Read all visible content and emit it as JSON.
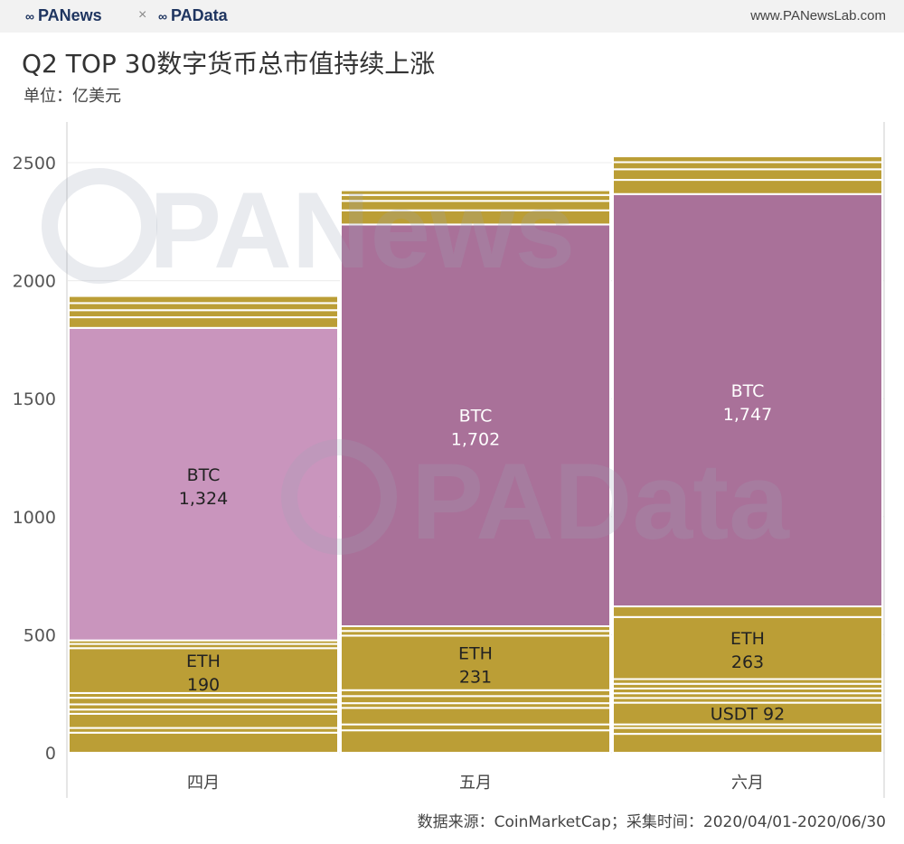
{
  "header": {
    "logo_left": "PANews",
    "separator": "×",
    "logo_right": "PAData",
    "url": "www.PANewsLab.com"
  },
  "title": "Q2 TOP 30数字货币总市值持续上涨",
  "unit": "单位：亿美元",
  "source": "数据来源：CoinMarketCap；采集时间：2020/04/01-2020/06/30",
  "watermarks": [
    "PANews",
    "PAData"
  ],
  "colors": {
    "btc_april": "#c995bd",
    "btc_may_june": "#a97199",
    "others": "#bb9e36",
    "separator": "#ffffff",
    "grid": "#ececec",
    "axis_text": "#555555"
  },
  "chart_data": {
    "type": "bar",
    "subtype": "stacked-mosaic",
    "categories": [
      "四月",
      "五月",
      "六月"
    ],
    "ylim": [
      0,
      2600
    ],
    "y_ticks": [
      0,
      500,
      1000,
      1500,
      2000,
      2500
    ],
    "grid": true,
    "totals": [
      1955,
      2430,
      2555
    ],
    "series": [
      {
        "name": "BTC",
        "values": [
          1324,
          1702,
          1747
        ],
        "labeled": true
      },
      {
        "name": "ETH",
        "values": [
          190,
          231,
          263
        ],
        "labeled": true
      },
      {
        "name": "USDT",
        "values": [
          null,
          null,
          92
        ],
        "labeled": true
      }
    ],
    "columns": [
      {
        "category": "四月",
        "segments": [
          {
            "coin": "",
            "value": 85
          },
          {
            "coin": "",
            "value": 20
          },
          {
            "coin": "",
            "value": 60
          },
          {
            "coin": "",
            "value": 18
          },
          {
            "coin": "",
            "value": 22
          },
          {
            "coin": "",
            "value": 28
          },
          {
            "coin": "",
            "value": 20
          },
          {
            "coin": "ETH",
            "value": 190,
            "label_value": "190"
          },
          {
            "coin": "",
            "value": 18
          },
          {
            "coin": "",
            "value": 15
          },
          {
            "coin": "BTC",
            "value": 1324,
            "label_value": "1,324"
          },
          {
            "coin": "",
            "value": 45
          },
          {
            "coin": "",
            "value": 30
          },
          {
            "coin": "",
            "value": 30
          },
          {
            "coin": "",
            "value": 30
          }
        ]
      },
      {
        "category": "五月",
        "segments": [
          {
            "coin": "",
            "value": 95
          },
          {
            "coin": "",
            "value": 25
          },
          {
            "coin": "",
            "value": 70
          },
          {
            "coin": "",
            "value": 20
          },
          {
            "coin": "",
            "value": 30
          },
          {
            "coin": "",
            "value": 25
          },
          {
            "coin": "ETH",
            "value": 231,
            "label_value": "231"
          },
          {
            "coin": "",
            "value": 20
          },
          {
            "coin": "",
            "value": 20
          },
          {
            "coin": "BTC",
            "value": 1702,
            "label_value": "1,702"
          },
          {
            "coin": "",
            "value": 60
          },
          {
            "coin": "",
            "value": 40
          },
          {
            "coin": "",
            "value": 25
          },
          {
            "coin": "",
            "value": 20
          }
        ]
      },
      {
        "category": "六月",
        "segments": [
          {
            "coin": "",
            "value": 80
          },
          {
            "coin": "",
            "value": 25
          },
          {
            "coin": "",
            "value": 15
          },
          {
            "coin": "USDT",
            "value": 92,
            "label_value": "92"
          },
          {
            "coin": "",
            "value": 20
          },
          {
            "coin": "",
            "value": 20
          },
          {
            "coin": "",
            "value": 20
          },
          {
            "coin": "",
            "value": 20
          },
          {
            "coin": "",
            "value": 20
          },
          {
            "coin": "ETH",
            "value": 263,
            "label_value": "263"
          },
          {
            "coin": "",
            "value": 45
          },
          {
            "coin": "BTC",
            "value": 1747,
            "label_value": "1,747"
          },
          {
            "coin": "",
            "value": 60
          },
          {
            "coin": "",
            "value": 45
          },
          {
            "coin": "",
            "value": 30
          },
          {
            "coin": "",
            "value": 25
          }
        ]
      }
    ]
  }
}
